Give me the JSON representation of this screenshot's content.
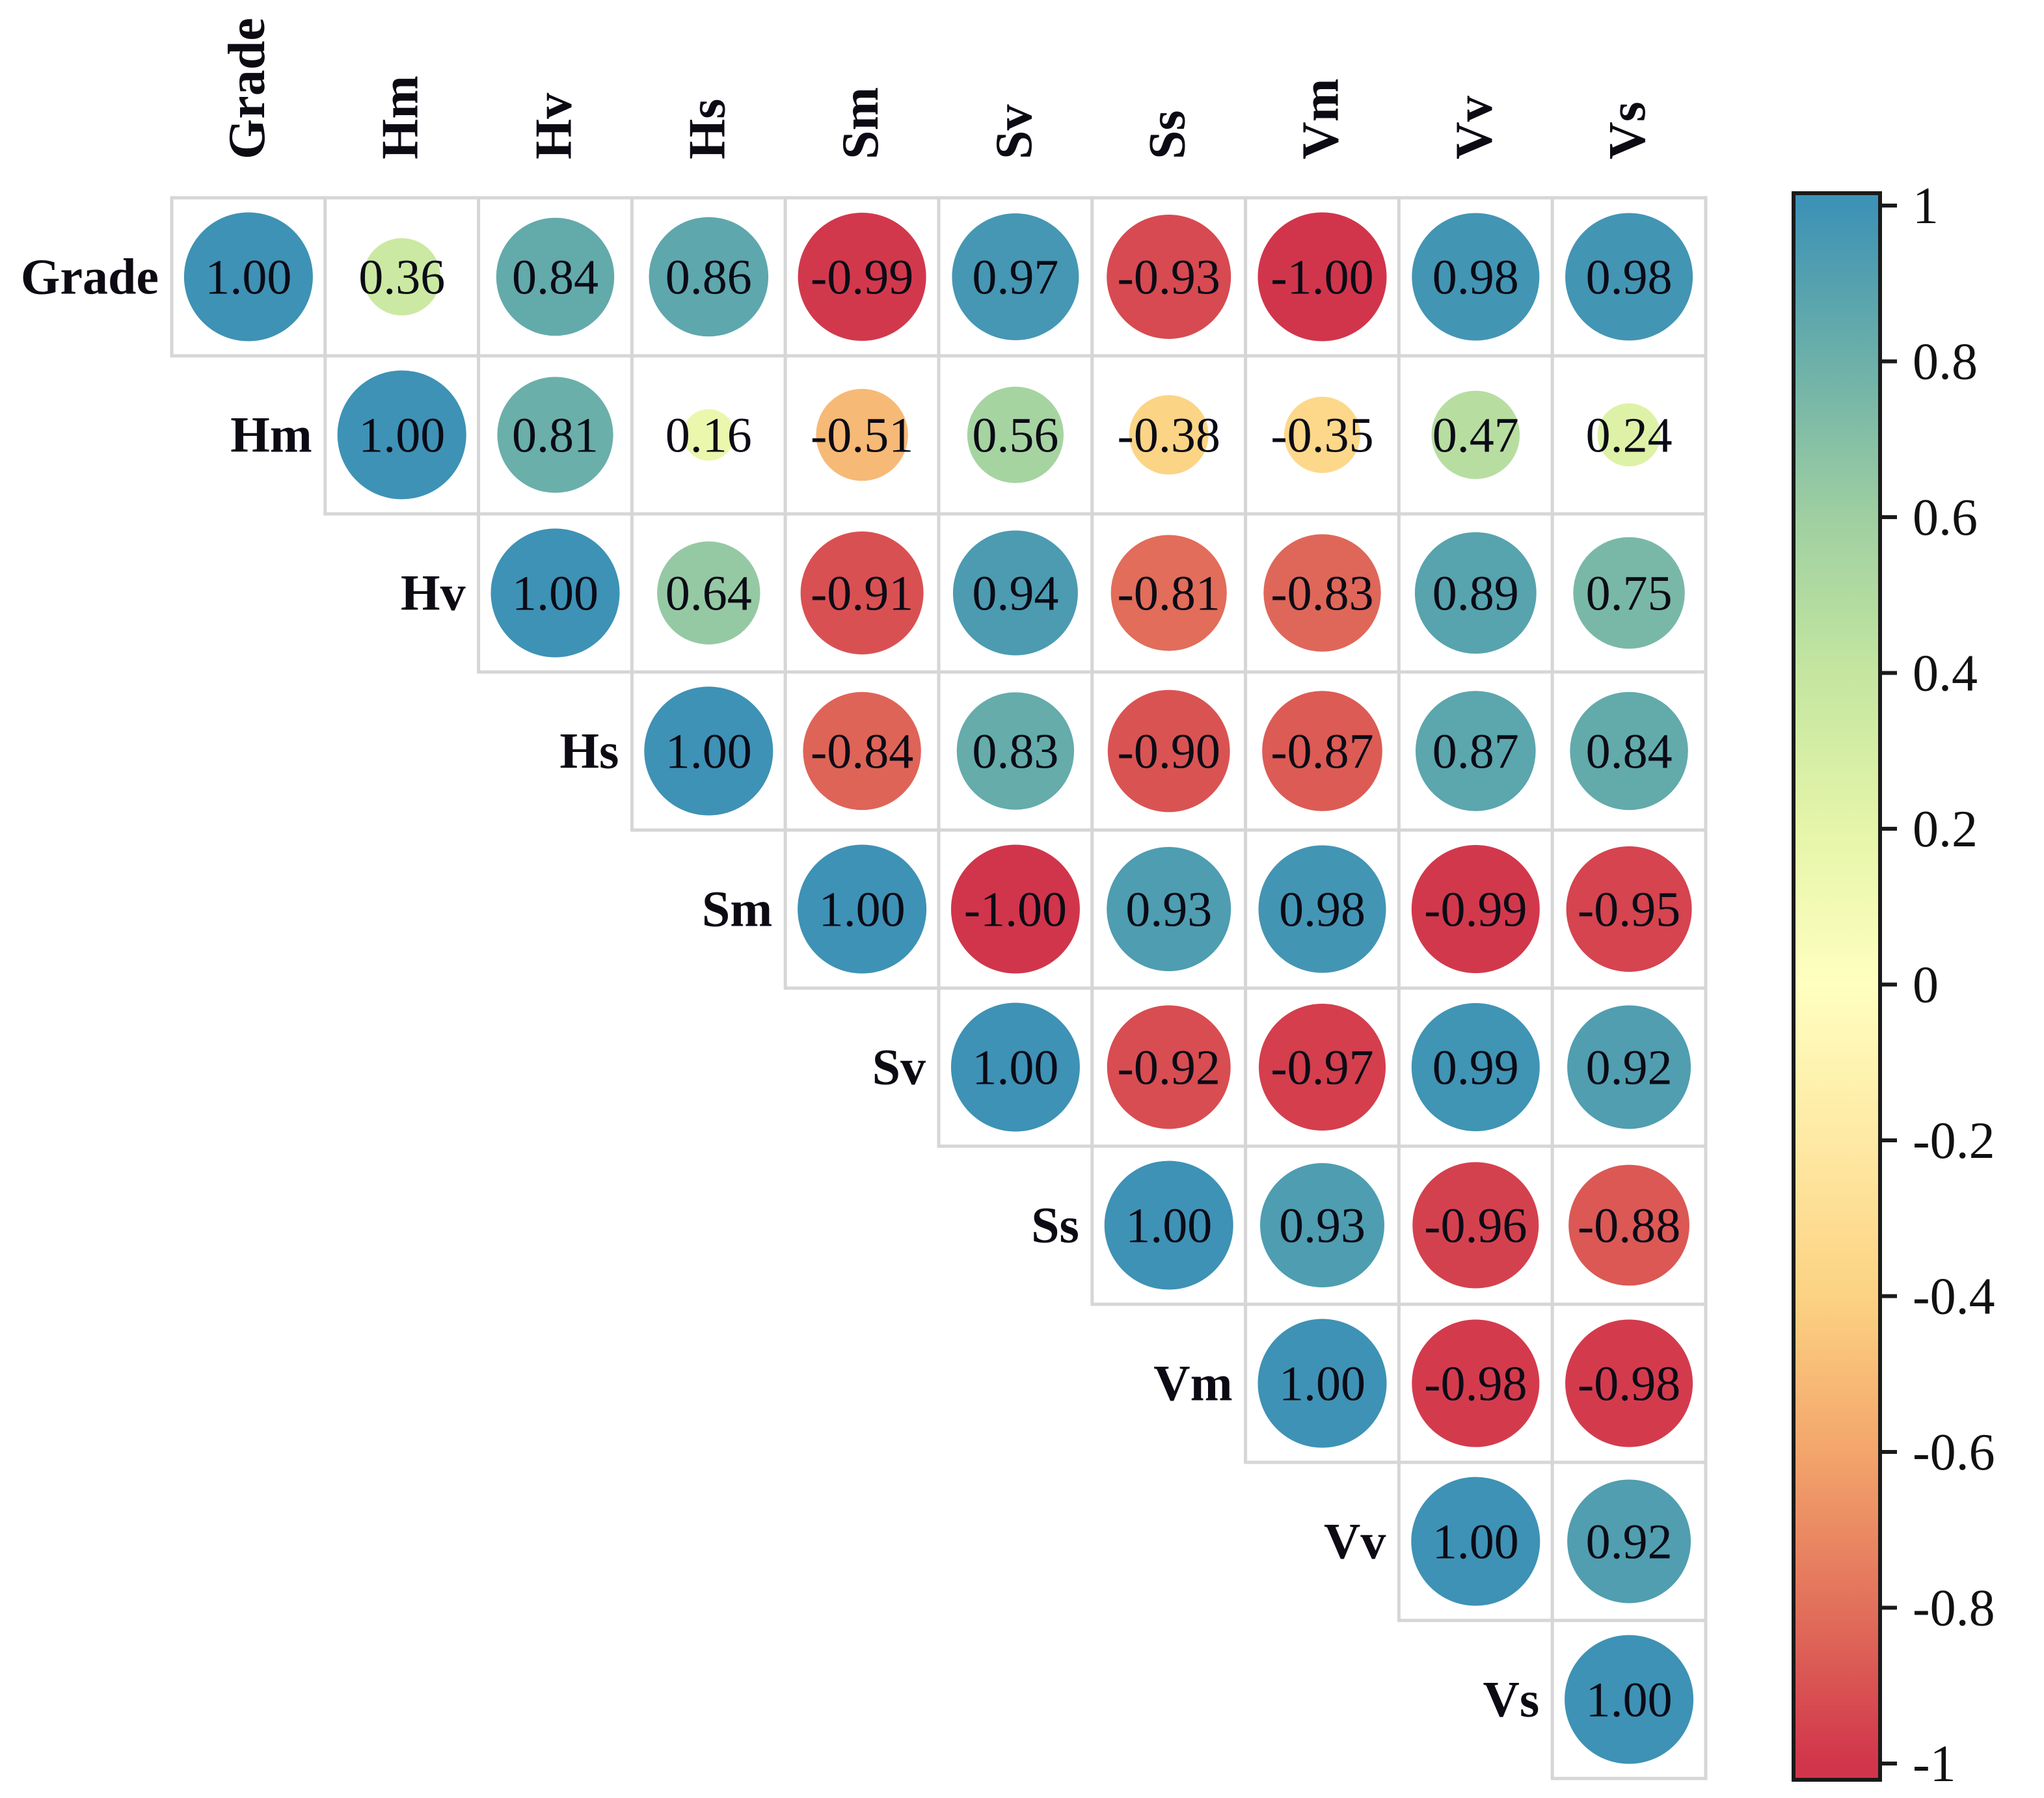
{
  "chart_data": {
    "type": "heatmap",
    "subtype": "correlation-matrix-upper-circles",
    "title": "",
    "variables": [
      "Grade",
      "Hm",
      "Hv",
      "Hs",
      "Sm",
      "Sv",
      "Ss",
      "Vm",
      "Vv",
      "Vs"
    ],
    "triangle": "upper",
    "values": [
      [
        1.0,
        0.36,
        0.84,
        0.86,
        -0.99,
        0.97,
        -0.93,
        -1.0,
        0.98,
        0.98
      ],
      [
        null,
        1.0,
        0.81,
        0.16,
        -0.51,
        0.56,
        -0.38,
        -0.35,
        0.47,
        0.24
      ],
      [
        null,
        null,
        1.0,
        0.64,
        -0.91,
        0.94,
        -0.81,
        -0.83,
        0.89,
        0.75
      ],
      [
        null,
        null,
        null,
        1.0,
        -0.84,
        0.83,
        -0.9,
        -0.87,
        0.87,
        0.84
      ],
      [
        null,
        null,
        null,
        null,
        1.0,
        -1.0,
        0.93,
        0.98,
        -0.99,
        -0.95
      ],
      [
        null,
        null,
        null,
        null,
        null,
        1.0,
        -0.92,
        -0.97,
        0.99,
        0.92
      ],
      [
        null,
        null,
        null,
        null,
        null,
        null,
        1.0,
        0.93,
        -0.96,
        -0.88
      ],
      [
        null,
        null,
        null,
        null,
        null,
        null,
        null,
        1.0,
        -0.98,
        -0.98
      ],
      [
        null,
        null,
        null,
        null,
        null,
        null,
        null,
        null,
        1.0,
        0.92
      ],
      [
        null,
        null,
        null,
        null,
        null,
        null,
        null,
        null,
        null,
        1.0
      ]
    ],
    "value_format_decimals": 2,
    "colorbar": {
      "range": [
        -1,
        1
      ],
      "ticks": [
        1,
        0.8,
        0.6,
        0.4,
        0.2,
        0,
        -0.2,
        -0.4,
        -0.6,
        -0.8,
        -1
      ],
      "tick_labels": [
        "1",
        "0.8",
        "0.6",
        "0.4",
        "0.2",
        "0",
        "-0.2",
        "-0.4",
        "-0.6",
        "-0.8",
        "-1"
      ],
      "placement": "right"
    },
    "color_scale": [
      {
        "value": -1.0,
        "color": "#d1354b"
      },
      {
        "value": -0.8,
        "color": "#e2705b"
      },
      {
        "value": -0.6,
        "color": "#f3a56b"
      },
      {
        "value": -0.4,
        "color": "#fcd283"
      },
      {
        "value": -0.2,
        "color": "#fee9a4"
      },
      {
        "value": 0.0,
        "color": "#ffffbf"
      },
      {
        "value": 0.2,
        "color": "#e5f5a9"
      },
      {
        "value": 0.4,
        "color": "#c4e6a0"
      },
      {
        "value": 0.6,
        "color": "#9fcfa1"
      },
      {
        "value": 0.8,
        "color": "#6cb0a9"
      },
      {
        "value": 1.0,
        "color": "#3e92b5"
      }
    ],
    "grid_color": "#d6d6d6",
    "xlabel": "",
    "ylabel": "",
    "grid": true
  }
}
